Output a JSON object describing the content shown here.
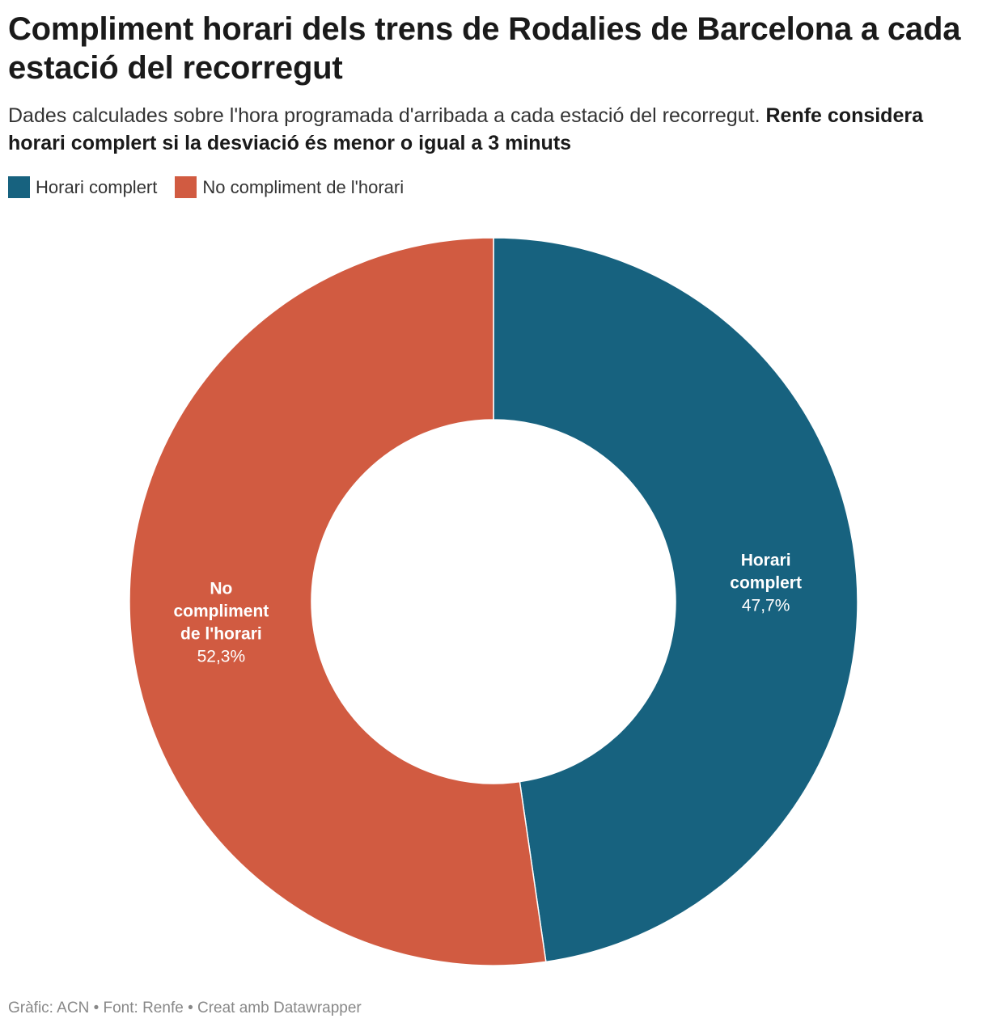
{
  "title": "Compliment horari dels trens de Rodalies de Barcelona a cada estació del recorregut",
  "subtitle": {
    "regular": "Dades calculades sobre l'hora programada d'arribada a cada estació del recorregut.",
    "bold": "Renfe considera horari complert si la desviació és menor o igual a 3 minuts"
  },
  "legend": [
    {
      "label": "Horari complert",
      "color": "#17627f"
    },
    {
      "label": "No compliment de l'horari",
      "color": "#d15b41"
    }
  ],
  "chart_data": {
    "type": "pie",
    "variant": "donut",
    "title": "Compliment horari dels trens de Rodalies de Barcelona a cada estació del recorregut",
    "slices": [
      {
        "name": "Horari complert",
        "label_lines": [
          "Horari",
          "complert"
        ],
        "value": 47.7,
        "value_label": "47,7%",
        "color": "#17627f"
      },
      {
        "name": "No compliment de l'horari",
        "label_lines": [
          "No",
          "compliment",
          "de l'horari"
        ],
        "value": 52.3,
        "value_label": "52,3%",
        "color": "#d15b41"
      }
    ],
    "start": "top",
    "direction": "clockwise",
    "legend_position": "top-left"
  },
  "footer": "Gràfic: ACN • Font: Renfe • Creat amb Datawrapper"
}
